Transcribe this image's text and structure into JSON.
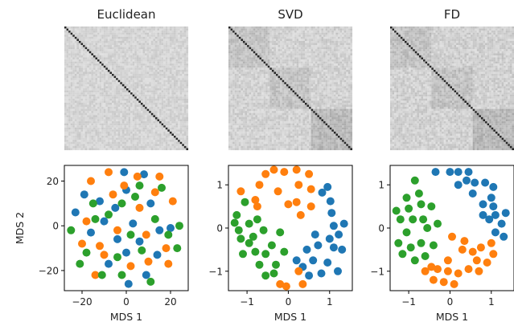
{
  "colors": {
    "blue": "#1f77b4",
    "orange": "#ff7f0e",
    "green": "#2ca02c",
    "frame": "#000000"
  },
  "heatmaps": [
    {
      "title": "Euclidean",
      "size": 60,
      "blocks": false,
      "noise": 0.1
    },
    {
      "title": "SVD",
      "size": 60,
      "blocks": true,
      "noise": 0.12
    },
    {
      "title": "FD",
      "size": 60,
      "blocks": true,
      "noise": 0.13
    }
  ],
  "chart_data": [
    {
      "type": "scatter",
      "xlabel": "MDS 1",
      "ylabel": "MDS 2",
      "xlim": [
        -28,
        28
      ],
      "ylim": [
        -29,
        27
      ],
      "xticks": [
        -20,
        0,
        20
      ],
      "yticks": [
        -20,
        0,
        20
      ],
      "xtick_labels": [
        "−20",
        "0",
        "20"
      ],
      "ytick_labels": [
        "−20",
        "0",
        "20"
      ],
      "series": [
        {
          "color": "blue",
          "points": [
            [
              -23,
              6
            ],
            [
              -19,
              14
            ],
            [
              -16,
              -3
            ],
            [
              -12,
              11
            ],
            [
              -8,
              -17
            ],
            [
              -5,
              8
            ],
            [
              0,
              16
            ],
            [
              0,
              -12
            ],
            [
              6,
              -7
            ],
            [
              8,
              23
            ],
            [
              11,
              10
            ],
            [
              15,
              -2
            ],
            [
              -4,
              -6
            ],
            [
              3,
              1
            ],
            [
              14,
              -13
            ],
            [
              20,
              -1
            ],
            [
              1,
              -26
            ],
            [
              -10,
              2
            ],
            [
              -1,
              24
            ],
            [
              9,
              -22
            ]
          ]
        },
        {
          "color": "orange",
          "points": [
            [
              -20,
              -8
            ],
            [
              -16,
              20
            ],
            [
              -14,
              -22
            ],
            [
              -8,
              24
            ],
            [
              -4,
              -2
            ],
            [
              -1,
              18
            ],
            [
              2,
              -18
            ],
            [
              6,
              8
            ],
            [
              10,
              -16
            ],
            [
              15,
              22
            ],
            [
              18,
              -10
            ],
            [
              19,
              -17
            ],
            [
              -18,
              2
            ],
            [
              -10,
              -13
            ],
            [
              5,
              22
            ],
            [
              -6,
              14
            ],
            [
              9,
              -4
            ],
            [
              21,
              11
            ],
            [
              13,
              15
            ],
            [
              -12,
              -9
            ]
          ]
        },
        {
          "color": "green",
          "points": [
            [
              -25,
              -2
            ],
            [
              -21,
              -17
            ],
            [
              -18,
              -12
            ],
            [
              -14,
              3
            ],
            [
              -11,
              -22
            ],
            [
              -8,
              5
            ],
            [
              -4,
              -14
            ],
            [
              -2,
              10
            ],
            [
              2,
              -4
            ],
            [
              4,
              13
            ],
            [
              7,
              -11
            ],
            [
              11,
              -25
            ],
            [
              13,
              3
            ],
            [
              16,
              17
            ],
            [
              19,
              -4
            ],
            [
              23,
              -10
            ],
            [
              24,
              0
            ],
            [
              -15,
              10
            ],
            [
              -2,
              -22
            ],
            [
              6,
              18
            ]
          ]
        }
      ]
    },
    {
      "type": "scatter",
      "xlabel": "MDS 1",
      "ylabel": "",
      "xlim": [
        -1.45,
        1.55
      ],
      "ylim": [
        -1.45,
        1.45
      ],
      "xticks": [
        -1,
        0,
        1
      ],
      "yticks": [
        -1,
        0,
        1
      ],
      "xtick_labels": [
        "−1",
        "0",
        "1"
      ],
      "ytick_labels": [
        "−1",
        "0",
        "1"
      ],
      "series": [
        {
          "color": "blue",
          "points": [
            [
              0.82,
              0.82
            ],
            [
              1.02,
              0.62
            ],
            [
              1.05,
              0.35
            ],
            [
              1.35,
              0.1
            ],
            [
              1.22,
              -0.15
            ],
            [
              1.0,
              -0.25
            ],
            [
              1.1,
              -0.45
            ],
            [
              0.72,
              -0.4
            ],
            [
              0.45,
              -0.5
            ],
            [
              0.6,
              -0.75
            ],
            [
              0.35,
              -0.9
            ],
            [
              0.95,
              -0.8
            ],
            [
              1.3,
              -0.5
            ],
            [
              0.8,
              -1.05
            ],
            [
              0.5,
              -1.1
            ],
            [
              1.1,
              0.05
            ],
            [
              0.2,
              -0.75
            ],
            [
              0.95,
              0.95
            ],
            [
              1.2,
              -1.0
            ],
            [
              0.65,
              -0.15
            ]
          ]
        },
        {
          "color": "orange",
          "points": [
            [
              -1.15,
              0.85
            ],
            [
              -0.8,
              0.65
            ],
            [
              -0.7,
              1.0
            ],
            [
              -0.55,
              1.25
            ],
            [
              -0.35,
              1.35
            ],
            [
              -0.1,
              1.3
            ],
            [
              0.2,
              1.35
            ],
            [
              0.5,
              1.25
            ],
            [
              0.55,
              0.9
            ],
            [
              0.25,
              1.0
            ],
            [
              -0.25,
              0.85
            ],
            [
              0.0,
              0.55
            ],
            [
              0.3,
              0.3
            ],
            [
              0.2,
              0.6
            ],
            [
              0.55,
              0.5
            ],
            [
              -0.2,
              -1.3
            ],
            [
              -0.05,
              -1.35
            ],
            [
              0.35,
              -1.3
            ],
            [
              0.25,
              -1.0
            ],
            [
              -0.75,
              0.5
            ]
          ]
        },
        {
          "color": "green",
          "points": [
            [
              -1.3,
              0.12
            ],
            [
              -1.2,
              -0.05
            ],
            [
              -1.15,
              -0.25
            ],
            [
              -1.25,
              0.3
            ],
            [
              -1.1,
              -0.6
            ],
            [
              -0.95,
              -0.35
            ],
            [
              -0.85,
              -0.2
            ],
            [
              -0.8,
              -0.55
            ],
            [
              -0.7,
              -0.85
            ],
            [
              -0.55,
              -0.6
            ],
            [
              -0.4,
              -0.4
            ],
            [
              -0.3,
              -0.85
            ],
            [
              -0.2,
              -0.1
            ],
            [
              -0.1,
              -0.55
            ],
            [
              -0.55,
              -1.1
            ],
            [
              -0.95,
              0.1
            ],
            [
              -0.75,
              0.2
            ],
            [
              -1.05,
              0.6
            ],
            [
              -0.35,
              -1.05
            ],
            [
              -0.6,
              -0.05
            ]
          ]
        }
      ]
    },
    {
      "type": "scatter",
      "xlabel": "MDS 1",
      "ylabel": "",
      "xlim": [
        -1.45,
        1.55
      ],
      "ylim": [
        -1.45,
        1.45
      ],
      "xticks": [
        -1,
        0,
        1
      ],
      "yticks": [
        -1,
        0,
        1
      ],
      "xtick_labels": [
        "−1",
        "0",
        "1"
      ],
      "ytick_labels": [
        "−1",
        "0",
        "1"
      ],
      "series": [
        {
          "color": "blue",
          "points": [
            [
              -0.35,
              1.3
            ],
            [
              0.0,
              1.3
            ],
            [
              0.2,
              1.3
            ],
            [
              0.45,
              1.3
            ],
            [
              0.6,
              1.05
            ],
            [
              0.85,
              1.05
            ],
            [
              1.05,
              0.95
            ],
            [
              0.2,
              1.0
            ],
            [
              0.55,
              0.8
            ],
            [
              1.0,
              0.7
            ],
            [
              1.05,
              0.5
            ],
            [
              1.35,
              0.35
            ],
            [
              1.25,
              0.1
            ],
            [
              1.1,
              0.3
            ],
            [
              0.95,
              0.2
            ],
            [
              0.8,
              0.55
            ],
            [
              1.1,
              -0.1
            ],
            [
              1.3,
              -0.2
            ],
            [
              0.4,
              1.1
            ],
            [
              0.8,
              0.3
            ]
          ]
        },
        {
          "color": "orange",
          "points": [
            [
              0.05,
              -0.2
            ],
            [
              0.35,
              -0.3
            ],
            [
              0.75,
              -0.45
            ],
            [
              1.05,
              -0.6
            ],
            [
              0.9,
              -0.8
            ],
            [
              0.65,
              -0.75
            ],
            [
              0.45,
              -0.95
            ],
            [
              0.2,
              -1.05
            ],
            [
              -0.05,
              -1.0
            ],
            [
              -0.4,
              -1.2
            ],
            [
              -0.6,
              -1.0
            ],
            [
              -0.3,
              -0.95
            ],
            [
              0.1,
              -1.3
            ],
            [
              -0.15,
              -1.25
            ],
            [
              0.7,
              -1.0
            ],
            [
              0.3,
              -0.5
            ],
            [
              1.0,
              -0.35
            ],
            [
              -0.05,
              -0.75
            ],
            [
              -0.45,
              -0.9
            ],
            [
              0.55,
              -0.55
            ]
          ]
        },
        {
          "color": "green",
          "points": [
            [
              -0.85,
              1.1
            ],
            [
              -0.75,
              0.8
            ],
            [
              -1.05,
              0.7
            ],
            [
              -0.7,
              0.55
            ],
            [
              -1.3,
              0.4
            ],
            [
              -1.2,
              0.2
            ],
            [
              -0.9,
              0.2
            ],
            [
              -0.65,
              0.2
            ],
            [
              -0.55,
              0.0
            ],
            [
              -1.05,
              -0.1
            ],
            [
              -1.25,
              -0.35
            ],
            [
              -0.95,
              -0.45
            ],
            [
              -0.7,
              -0.35
            ],
            [
              -0.6,
              -0.65
            ],
            [
              -0.85,
              -0.75
            ],
            [
              -1.15,
              -0.6
            ],
            [
              -0.4,
              -0.4
            ],
            [
              -0.45,
              0.5
            ],
            [
              -1.0,
              0.45
            ],
            [
              -0.3,
              0.1
            ]
          ]
        }
      ]
    }
  ]
}
